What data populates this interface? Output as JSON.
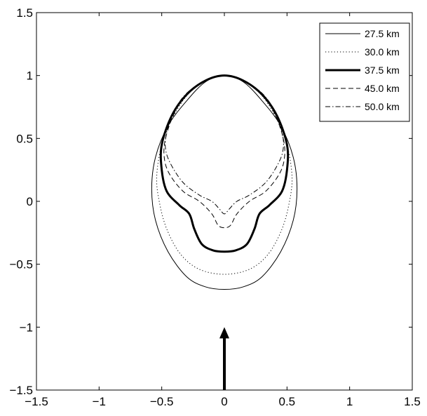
{
  "chart_data": {
    "type": "line",
    "title": "",
    "xlabel": "",
    "ylabel": "",
    "xlim": [
      -1.5,
      1.5
    ],
    "ylim": [
      -1.5,
      1.5
    ],
    "x_ticks": [
      -1.5,
      -1,
      -0.5,
      0,
      0.5,
      1,
      1.5
    ],
    "y_ticks": [
      -1.5,
      -1,
      -0.5,
      0,
      0.5,
      1,
      1.5
    ],
    "x_tick_labels": [
      "−1.5",
      "−1",
      "−0.5",
      "0",
      "0.5",
      "1",
      "1.5"
    ],
    "y_tick_labels": [
      "−1.5",
      "−1",
      "−0.5",
      "0",
      "0.5",
      "1",
      "1.5"
    ],
    "grid": false,
    "legend_position": "top-right",
    "arrow": {
      "from": [
        0,
        -1.5
      ],
      "to": [
        0,
        -1.0
      ]
    },
    "series": [
      {
        "name": "27.5 km",
        "style": "solid",
        "width": "thin",
        "points": [
          [
            0,
            1.0
          ],
          [
            0.15,
            0.95
          ],
          [
            0.3,
            0.8
          ],
          [
            0.45,
            0.6
          ],
          [
            0.55,
            0.35
          ],
          [
            0.58,
            0.1
          ],
          [
            0.55,
            -0.15
          ],
          [
            0.45,
            -0.4
          ],
          [
            0.3,
            -0.6
          ],
          [
            0.15,
            -0.68
          ],
          [
            0,
            -0.7
          ]
        ]
      },
      {
        "name": "30.0 km",
        "style": "dotted",
        "width": "thin",
        "points": [
          [
            0,
            1.0
          ],
          [
            0.15,
            0.96
          ],
          [
            0.3,
            0.84
          ],
          [
            0.42,
            0.65
          ],
          [
            0.5,
            0.45
          ],
          [
            0.54,
            0.2
          ],
          [
            0.52,
            0.0
          ],
          [
            0.46,
            -0.22
          ],
          [
            0.35,
            -0.42
          ],
          [
            0.2,
            -0.54
          ],
          [
            0,
            -0.58
          ]
        ]
      },
      {
        "name": "37.5 km",
        "style": "solid",
        "width": "thick",
        "points": [
          [
            0,
            1.0
          ],
          [
            0.15,
            0.96
          ],
          [
            0.3,
            0.85
          ],
          [
            0.42,
            0.68
          ],
          [
            0.5,
            0.45
          ],
          [
            0.5,
            0.25
          ],
          [
            0.46,
            0.08
          ],
          [
            0.36,
            -0.03
          ],
          [
            0.28,
            -0.1
          ],
          [
            0.24,
            -0.22
          ],
          [
            0.18,
            -0.34
          ],
          [
            0.09,
            -0.39
          ],
          [
            0,
            -0.4
          ]
        ]
      },
      {
        "name": "45.0 km",
        "style": "dashed",
        "width": "thin",
        "points": [
          [
            0,
            1.0
          ],
          [
            0.15,
            0.96
          ],
          [
            0.3,
            0.85
          ],
          [
            0.4,
            0.7
          ],
          [
            0.47,
            0.5
          ],
          [
            0.48,
            0.35
          ],
          [
            0.44,
            0.22
          ],
          [
            0.33,
            0.08
          ],
          [
            0.2,
            0.0
          ],
          [
            0.1,
            -0.1
          ],
          [
            0.05,
            -0.19
          ],
          [
            0,
            -0.21
          ]
        ]
      },
      {
        "name": "50.0 km",
        "style": "dashdot",
        "width": "thin",
        "points": [
          [
            0,
            1.0
          ],
          [
            0.15,
            0.96
          ],
          [
            0.3,
            0.86
          ],
          [
            0.4,
            0.72
          ],
          [
            0.46,
            0.55
          ],
          [
            0.47,
            0.42
          ],
          [
            0.43,
            0.3
          ],
          [
            0.33,
            0.15
          ],
          [
            0.2,
            0.05
          ],
          [
            0.1,
            0.0
          ],
          [
            0.04,
            -0.06
          ],
          [
            0,
            -0.1
          ]
        ]
      }
    ]
  }
}
